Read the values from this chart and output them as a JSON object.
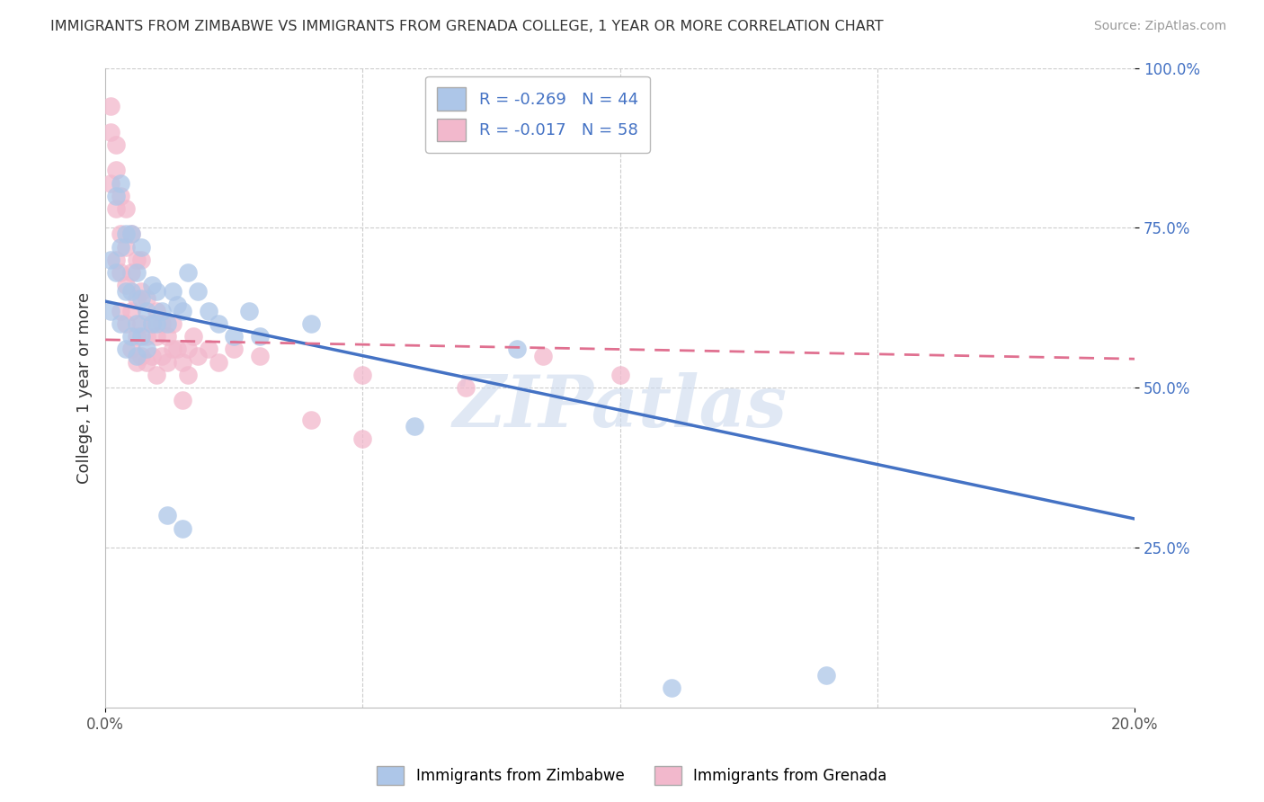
{
  "title": "IMMIGRANTS FROM ZIMBABWE VS IMMIGRANTS FROM GRENADA COLLEGE, 1 YEAR OR MORE CORRELATION CHART",
  "source": "Source: ZipAtlas.com",
  "ylabel": "College, 1 year or more",
  "xlim": [
    0.0,
    0.2
  ],
  "ylim": [
    0.0,
    1.0
  ],
  "yticks": [
    0.25,
    0.5,
    0.75,
    1.0
  ],
  "ytick_labels": [
    "25.0%",
    "50.0%",
    "75.0%",
    "100.0%"
  ],
  "zimbabwe_color": "#adc6e8",
  "grenada_color": "#f2b8cc",
  "zimbabwe_line_color": "#4472c4",
  "grenada_line_color": "#e07090",
  "background_color": "#ffffff",
  "grid_color": "#cccccc",
  "watermark": "ZIPatlas",
  "zimbabwe_x": [
    0.001,
    0.001,
    0.002,
    0.002,
    0.003,
    0.003,
    0.003,
    0.004,
    0.004,
    0.004,
    0.005,
    0.005,
    0.005,
    0.006,
    0.006,
    0.006,
    0.007,
    0.007,
    0.007,
    0.008,
    0.008,
    0.009,
    0.009,
    0.01,
    0.01,
    0.011,
    0.012,
    0.013,
    0.014,
    0.015,
    0.016,
    0.018,
    0.02,
    0.022,
    0.025,
    0.028,
    0.03,
    0.04,
    0.06,
    0.08,
    0.11,
    0.14,
    0.012,
    0.015
  ],
  "zimbabwe_y": [
    0.62,
    0.7,
    0.68,
    0.8,
    0.72,
    0.6,
    0.82,
    0.56,
    0.65,
    0.74,
    0.58,
    0.65,
    0.74,
    0.55,
    0.6,
    0.68,
    0.58,
    0.64,
    0.72,
    0.56,
    0.62,
    0.6,
    0.66,
    0.6,
    0.65,
    0.62,
    0.6,
    0.65,
    0.63,
    0.62,
    0.68,
    0.65,
    0.62,
    0.6,
    0.58,
    0.62,
    0.58,
    0.6,
    0.44,
    0.56,
    0.03,
    0.05,
    0.3,
    0.28
  ],
  "grenada_x": [
    0.001,
    0.001,
    0.001,
    0.002,
    0.002,
    0.002,
    0.002,
    0.003,
    0.003,
    0.003,
    0.003,
    0.004,
    0.004,
    0.004,
    0.004,
    0.005,
    0.005,
    0.005,
    0.005,
    0.006,
    0.006,
    0.006,
    0.006,
    0.007,
    0.007,
    0.007,
    0.007,
    0.008,
    0.008,
    0.008,
    0.009,
    0.009,
    0.01,
    0.01,
    0.01,
    0.011,
    0.011,
    0.012,
    0.012,
    0.013,
    0.013,
    0.014,
    0.015,
    0.016,
    0.017,
    0.018,
    0.02,
    0.022,
    0.025,
    0.03,
    0.04,
    0.05,
    0.07,
    0.085,
    0.015,
    0.016,
    0.05,
    0.1
  ],
  "grenada_y": [
    0.9,
    0.82,
    0.94,
    0.78,
    0.84,
    0.7,
    0.88,
    0.68,
    0.74,
    0.8,
    0.62,
    0.6,
    0.66,
    0.72,
    0.78,
    0.56,
    0.62,
    0.68,
    0.74,
    0.54,
    0.58,
    0.64,
    0.7,
    0.55,
    0.6,
    0.65,
    0.7,
    0.54,
    0.58,
    0.64,
    0.55,
    0.6,
    0.52,
    0.58,
    0.62,
    0.55,
    0.6,
    0.54,
    0.58,
    0.56,
    0.6,
    0.56,
    0.54,
    0.56,
    0.58,
    0.55,
    0.56,
    0.54,
    0.56,
    0.55,
    0.45,
    0.52,
    0.5,
    0.55,
    0.48,
    0.52,
    0.42,
    0.52
  ],
  "zim_line_x0": 0.0,
  "zim_line_y0": 0.635,
  "zim_line_x1": 0.2,
  "zim_line_y1": 0.295,
  "gre_line_x0": 0.0,
  "gre_line_y0": 0.575,
  "gre_line_x1": 0.2,
  "gre_line_y1": 0.545
}
